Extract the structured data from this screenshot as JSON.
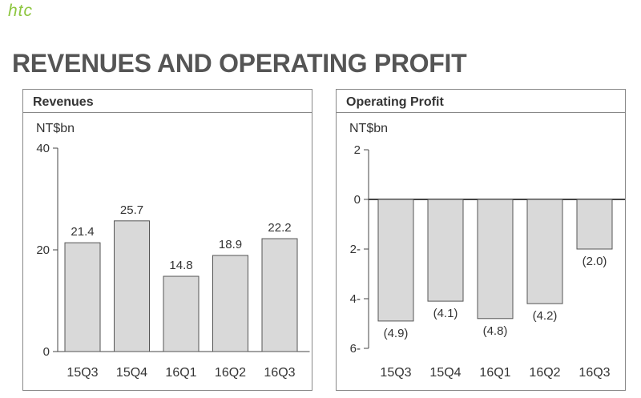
{
  "brand": {
    "logo_text": "htc"
  },
  "page": {
    "title": "REVENUES AND OPERATING PROFIT"
  },
  "chart_data": [
    {
      "type": "bar",
      "title": "Revenues",
      "unit": "NT$bn",
      "categories": [
        "15Q3",
        "15Q4",
        "16Q1",
        "16Q2",
        "16Q3"
      ],
      "values": [
        21.4,
        25.7,
        14.8,
        18.9,
        22.2
      ],
      "value_labels": [
        "21.4",
        "25.7",
        "14.8",
        "18.9",
        "22.2"
      ],
      "ylim": [
        0,
        40
      ],
      "yticks": [
        0,
        20,
        40
      ],
      "ytick_labels": [
        "0",
        "20",
        "40"
      ],
      "bar_color": "#d9d9d9",
      "grid": false
    },
    {
      "type": "bar",
      "title": "Operating Profit",
      "unit": "NT$bn",
      "categories": [
        "15Q3",
        "15Q4",
        "16Q1",
        "16Q2",
        "16Q3"
      ],
      "values": [
        -4.9,
        -4.1,
        -4.8,
        -4.2,
        -2.0
      ],
      "value_labels": [
        "(4.9)",
        "(4.1)",
        "(4.8)",
        "(4.2)",
        "(2.0)"
      ],
      "ylim": [
        -6,
        2
      ],
      "yticks": [
        2,
        0,
        -2,
        -4,
        -6
      ],
      "ytick_labels": [
        "2",
        "0",
        "2-",
        "4-",
        "6-"
      ],
      "bar_color": "#d9d9d9",
      "grid": false
    }
  ]
}
